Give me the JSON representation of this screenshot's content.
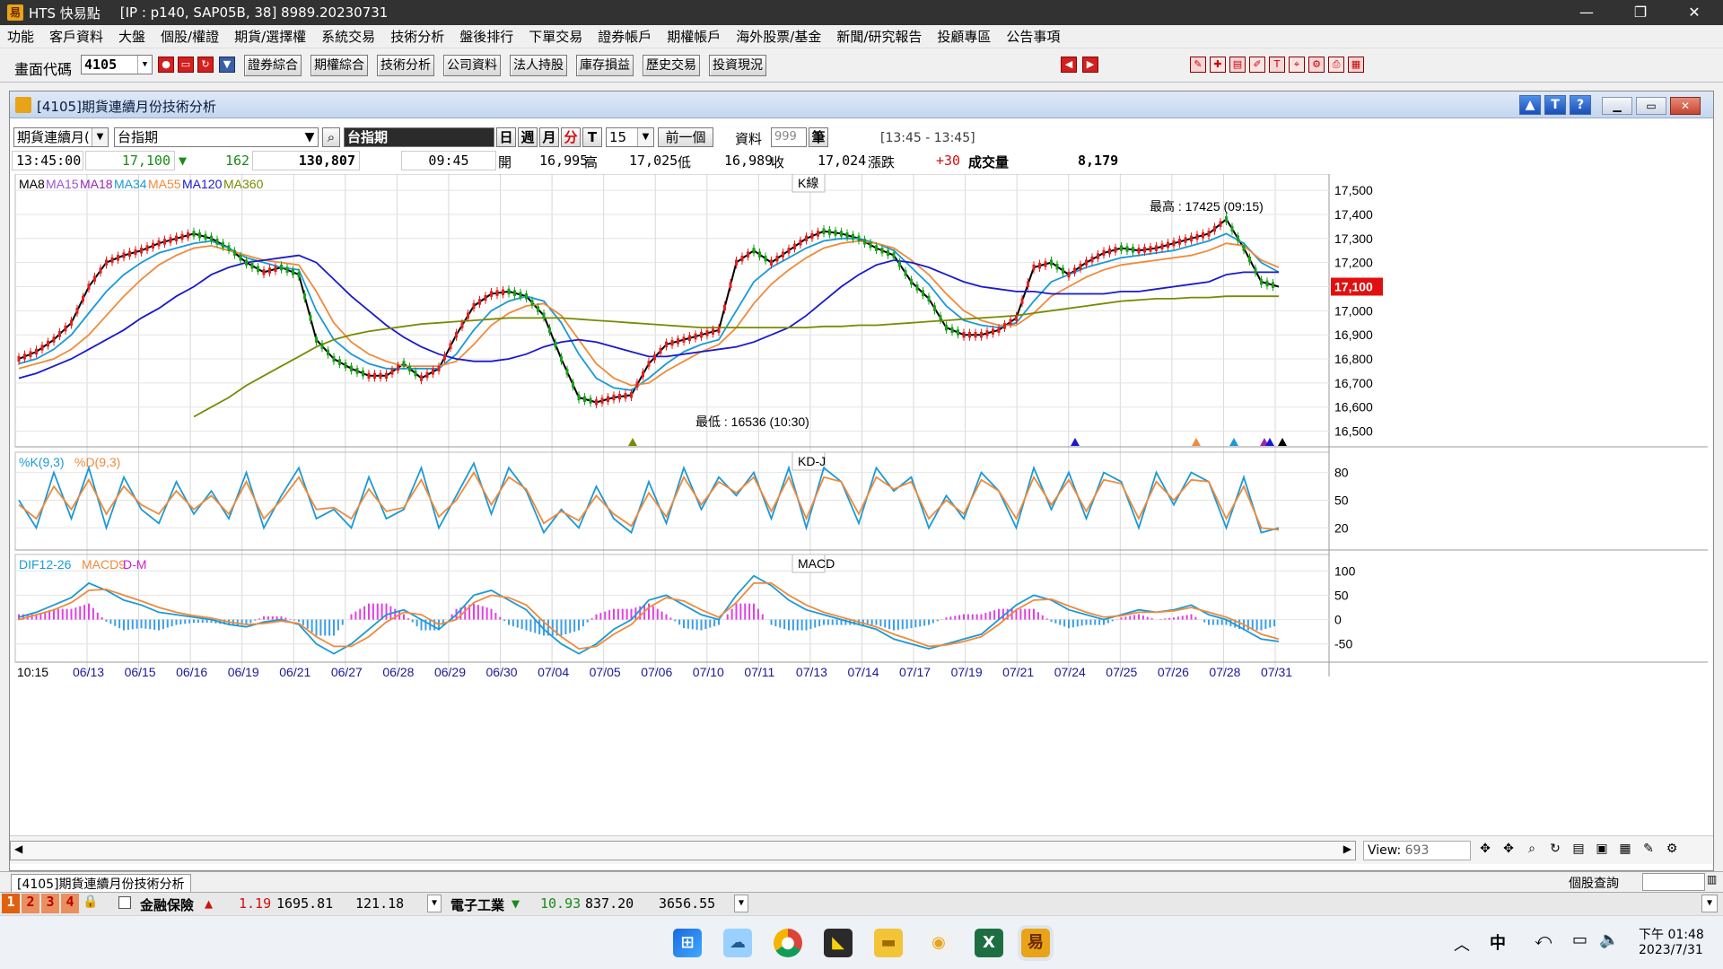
{
  "app": {
    "title": "HTS 快易點",
    "conn": "[IP : p140, SAP05B, 38] 8989.20230731"
  },
  "window_controls": {
    "minimize": "—",
    "maximize": "❐",
    "close": "✕"
  },
  "menu": [
    "功能",
    "客戶資料",
    "大盤",
    "個股/權證",
    "期貨/選擇權",
    "系統交易",
    "技術分析",
    "盤後排行",
    "下單交易",
    "證券帳戶",
    "期權帳戶",
    "海外股票/基金",
    "新聞/研究報告",
    "投顧專區",
    "公告事項"
  ],
  "toolbar": {
    "label": "畫面代碼",
    "code": "4105",
    "buttons": [
      "證券綜合",
      "期權綜合",
      "技術分析",
      "公司資料",
      "法人持股",
      "庫存損益",
      "歷史交易",
      "投資現況"
    ]
  },
  "panel": {
    "title": "[4105]期貨連續月份技術分析",
    "help_buttons": [
      "▲",
      "T",
      "?"
    ],
    "selector": "期貨連續月(",
    "product": "台指期",
    "product_name": "台指期",
    "periods": [
      "日",
      "週",
      "月",
      "分",
      "T"
    ],
    "interval": "15",
    "prev_label": "前一個",
    "data_label": "資料",
    "data_count": "999",
    "data_unit": "筆",
    "time_range": "[13:45 - 13:45]"
  },
  "quote": {
    "time": "13:45:00",
    "price": "17,100",
    "change": "162",
    "volume_total": "130,807",
    "bar_time": "09:45",
    "open_label": "開",
    "open": "16,995",
    "high_label": "高",
    "high": "17,025",
    "low_label": "低",
    "low": "16,989",
    "close_label": "收",
    "close": "17,024",
    "chg_label": "漲跌",
    "chg": "+30",
    "vol_label": "成交量",
    "vol": "8,179"
  },
  "chart_data": [
    {
      "type": "line",
      "title": "K線",
      "legend": [
        "MA8",
        "MA15",
        "MA18",
        "MA34",
        "MA55",
        "MA120",
        "MA360"
      ],
      "y_ticks": [
        "17,500",
        "17,400",
        "17,300",
        "17,200",
        "17,100",
        "17,000",
        "16,900",
        "16,800",
        "16,700",
        "16,600",
        "16,500"
      ],
      "ylim": [
        16450,
        17560
      ],
      "last_price": "17,100",
      "annotation_high": "最高 : 17425 (09:15)",
      "annotation_low": "最低 : 16536 (10:30)",
      "x": [
        0,
        10,
        20,
        30,
        40,
        50,
        60,
        70,
        80,
        90,
        100,
        110,
        120,
        130,
        140,
        150,
        160,
        170,
        180,
        190,
        200,
        210,
        220,
        230,
        240,
        250,
        260,
        270,
        280,
        290,
        300,
        310,
        320,
        330,
        340,
        350,
        360,
        370,
        380,
        390,
        400,
        410,
        420,
        430,
        440,
        450,
        460,
        470,
        480,
        490,
        500,
        510,
        520,
        530,
        540,
        550,
        560,
        570,
        580,
        590,
        600,
        610,
        620,
        630,
        640,
        650,
        660,
        670,
        680,
        690,
        700,
        710,
        720
      ],
      "series": [
        {
          "name": "MA8",
          "values": [
            16800,
            16830,
            16880,
            16950,
            17100,
            17200,
            17230,
            17250,
            17280,
            17300,
            17320,
            17300,
            17260,
            17200,
            17160,
            17180,
            17150,
            16880,
            16800,
            16760,
            16730,
            16730,
            16780,
            16720,
            16760,
            16900,
            17020,
            17070,
            17080,
            17060,
            16980,
            16800,
            16640,
            16620,
            16640,
            16650,
            16780,
            16860,
            16880,
            16900,
            16920,
            17200,
            17250,
            17200,
            17250,
            17300,
            17330,
            17320,
            17300,
            17260,
            17230,
            17120,
            17050,
            16930,
            16900,
            16900,
            16920,
            16970,
            17180,
            17200,
            17150,
            17200,
            17240,
            17260,
            17250,
            17260,
            17280,
            17300,
            17320,
            17380,
            17260,
            17120,
            17100
          ]
        },
        {
          "name": "MA34",
          "values": [
            16780,
            16800,
            16840,
            16900,
            16990,
            17080,
            17150,
            17200,
            17240,
            17260,
            17280,
            17290,
            17260,
            17220,
            17200,
            17180,
            17170,
            17000,
            16880,
            16820,
            16780,
            16760,
            16760,
            16760,
            16760,
            16820,
            16920,
            17000,
            17040,
            17060,
            17040,
            16950,
            16820,
            16720,
            16680,
            16670,
            16720,
            16780,
            16830,
            16860,
            16880,
            17000,
            17120,
            17180,
            17220,
            17260,
            17290,
            17300,
            17300,
            17280,
            17250,
            17180,
            17110,
            17020,
            16960,
            16940,
            16930,
            16950,
            17040,
            17120,
            17150,
            17180,
            17200,
            17220,
            17230,
            17240,
            17250,
            17270,
            17290,
            17320,
            17280,
            17200,
            17160
          ]
        },
        {
          "name": "MA55",
          "values": [
            16760,
            16780,
            16800,
            16840,
            16900,
            16980,
            17060,
            17130,
            17190,
            17230,
            17260,
            17270,
            17250,
            17230,
            17210,
            17200,
            17190,
            17080,
            16950,
            16870,
            16820,
            16790,
            16770,
            16770,
            16770,
            16790,
            16860,
            16940,
            16990,
            17020,
            17030,
            16980,
            16880,
            16780,
            16720,
            16690,
            16700,
            16750,
            16790,
            16830,
            16860,
            16930,
            17030,
            17110,
            17170,
            17220,
            17260,
            17280,
            17290,
            17280,
            17260,
            17210,
            17150,
            17070,
            17000,
            16960,
            16940,
            16940,
            16990,
            17060,
            17100,
            17140,
            17170,
            17190,
            17200,
            17210,
            17220,
            17230,
            17250,
            17280,
            17270,
            17210,
            17180
          ]
        },
        {
          "name": "MA120",
          "values": [
            16720,
            16740,
            16770,
            16800,
            16840,
            16880,
            16920,
            16970,
            17010,
            17060,
            17100,
            17150,
            17180,
            17200,
            17210,
            17220,
            17230,
            17200,
            17130,
            17060,
            17000,
            16940,
            16890,
            16850,
            16820,
            16800,
            16790,
            16790,
            16800,
            16820,
            16850,
            16870,
            16880,
            16870,
            16850,
            16830,
            16810,
            16810,
            16820,
            16830,
            16840,
            16850,
            16870,
            16900,
            16930,
            16980,
            17040,
            17100,
            17150,
            17190,
            17210,
            17200,
            17180,
            17150,
            17120,
            17100,
            17090,
            17080,
            17080,
            17070,
            17070,
            17070,
            17070,
            17080,
            17080,
            17090,
            17100,
            17110,
            17120,
            17150,
            17160,
            17160,
            17160
          ]
        },
        {
          "name": "MA360",
          "values": [
            null,
            null,
            null,
            null,
            null,
            null,
            null,
            null,
            null,
            null,
            16560,
            16600,
            16640,
            16690,
            16730,
            16770,
            16810,
            16850,
            16880,
            16900,
            16915,
            16925,
            16935,
            16945,
            16950,
            16955,
            16960,
            16965,
            16970,
            16970,
            16970,
            16970,
            16965,
            16960,
            16955,
            16950,
            16945,
            16940,
            16935,
            16930,
            16930,
            16930,
            16930,
            16930,
            16930,
            16930,
            16935,
            16935,
            16940,
            16940,
            16945,
            16950,
            16955,
            16960,
            16965,
            16970,
            16975,
            16980,
            16990,
            17000,
            17010,
            17020,
            17030,
            17040,
            17045,
            17050,
            17050,
            17055,
            17055,
            17060,
            17060,
            17060,
            17060
          ]
        }
      ]
    },
    {
      "type": "line",
      "title": "KD-J",
      "legend": [
        "%K(9,3)",
        "%D(9,3)"
      ],
      "y_ticks": [
        "80",
        "50",
        "20"
      ],
      "ylim": [
        0,
        100
      ],
      "series": [
        {
          "name": "%K(9,3)",
          "values": [
            50,
            20,
            80,
            30,
            85,
            20,
            75,
            40,
            25,
            70,
            35,
            60,
            30,
            80,
            20,
            55,
            85,
            30,
            40,
            20,
            75,
            30,
            40,
            85,
            20,
            55,
            90,
            35,
            85,
            60,
            15,
            40,
            20,
            65,
            30,
            15,
            70,
            25,
            85,
            40,
            75,
            55,
            80,
            30,
            85,
            20,
            85,
            70,
            25,
            85,
            60,
            75,
            20,
            55,
            30,
            80,
            60,
            20,
            85,
            40,
            80,
            30,
            80,
            70,
            20,
            80,
            45,
            80,
            70,
            20,
            75,
            15,
            20
          ]
        },
        {
          "name": "%D(9,3)",
          "values": [
            45,
            30,
            65,
            40,
            72,
            35,
            65,
            45,
            35,
            60,
            40,
            55,
            35,
            70,
            30,
            50,
            75,
            40,
            42,
            30,
            62,
            38,
            42,
            72,
            32,
            50,
            80,
            45,
            75,
            62,
            25,
            38,
            28,
            55,
            35,
            22,
            58,
            32,
            75,
            45,
            70,
            58,
            75,
            38,
            75,
            30,
            75,
            70,
            35,
            75,
            62,
            70,
            30,
            50,
            35,
            72,
            60,
            30,
            75,
            45,
            72,
            38,
            72,
            68,
            30,
            70,
            50,
            72,
            70,
            30,
            65,
            20,
            18
          ]
        }
      ]
    },
    {
      "type": "line",
      "title": "MACD",
      "legend": [
        "DIF12-26",
        "MACD9",
        "D-M"
      ],
      "y_ticks": [
        "100",
        "50",
        "0",
        "-50"
      ],
      "ylim": [
        -80,
        130
      ],
      "series": [
        {
          "name": "DIF12-26",
          "values": [
            5,
            15,
            30,
            45,
            75,
            60,
            40,
            30,
            15,
            10,
            5,
            0,
            -10,
            -15,
            -5,
            0,
            -10,
            -50,
            -70,
            -50,
            -20,
            10,
            20,
            0,
            -20,
            10,
            50,
            60,
            40,
            20,
            -20,
            -50,
            -70,
            -50,
            -20,
            0,
            40,
            50,
            30,
            10,
            0,
            50,
            90,
            70,
            40,
            20,
            10,
            0,
            -10,
            -20,
            -40,
            -50,
            -60,
            -50,
            -40,
            -30,
            0,
            30,
            50,
            40,
            20,
            10,
            0,
            10,
            20,
            15,
            20,
            30,
            10,
            0,
            -20,
            -40,
            -45
          ]
        },
        {
          "name": "MACD9",
          "values": [
            0,
            10,
            20,
            35,
            60,
            62,
            50,
            38,
            25,
            15,
            8,
            3,
            -5,
            -10,
            -8,
            -3,
            -8,
            -35,
            -55,
            -55,
            -35,
            -5,
            15,
            10,
            -10,
            0,
            35,
            50,
            45,
            30,
            -5,
            -35,
            -60,
            -55,
            -30,
            -10,
            25,
            45,
            38,
            20,
            5,
            35,
            75,
            75,
            50,
            30,
            15,
            5,
            -5,
            -15,
            -30,
            -42,
            -55,
            -52,
            -45,
            -35,
            -10,
            20,
            40,
            42,
            28,
            15,
            5,
            8,
            15,
            15,
            18,
            25,
            15,
            5,
            -10,
            -30,
            -40
          ]
        }
      ]
    }
  ],
  "x_axis": {
    "first": "10:15",
    "dates": [
      "06/13",
      "06/15",
      "06/16",
      "06/19",
      "06/21",
      "06/27",
      "06/28",
      "06/29",
      "06/30",
      "07/04",
      "07/05",
      "07/06",
      "07/10",
      "07/11",
      "07/13",
      "07/14",
      "07/17",
      "07/19",
      "07/21",
      "07/24",
      "07/25",
      "07/26",
      "07/28",
      "07/31"
    ]
  },
  "bottom": {
    "view_label": "View:",
    "view_value": "693"
  },
  "tab": {
    "label": "[4105]期貨連續月份技術分析",
    "right": "個股查詢"
  },
  "status": {
    "pages": [
      "1",
      "2",
      "3",
      "4"
    ],
    "idx1_name": "金融保險",
    "idx1_chg": "1.19",
    "idx1_val": "1695.81",
    "idx1_vol": "121.18",
    "idx2_name": "電子工業",
    "idx2_chg": "10.93",
    "idx2_val": "837.20",
    "idx2_vol": "3656.55"
  },
  "taskbar": {
    "time": "下午 01:48",
    "date": "2023/7/31",
    "ime": "中"
  }
}
